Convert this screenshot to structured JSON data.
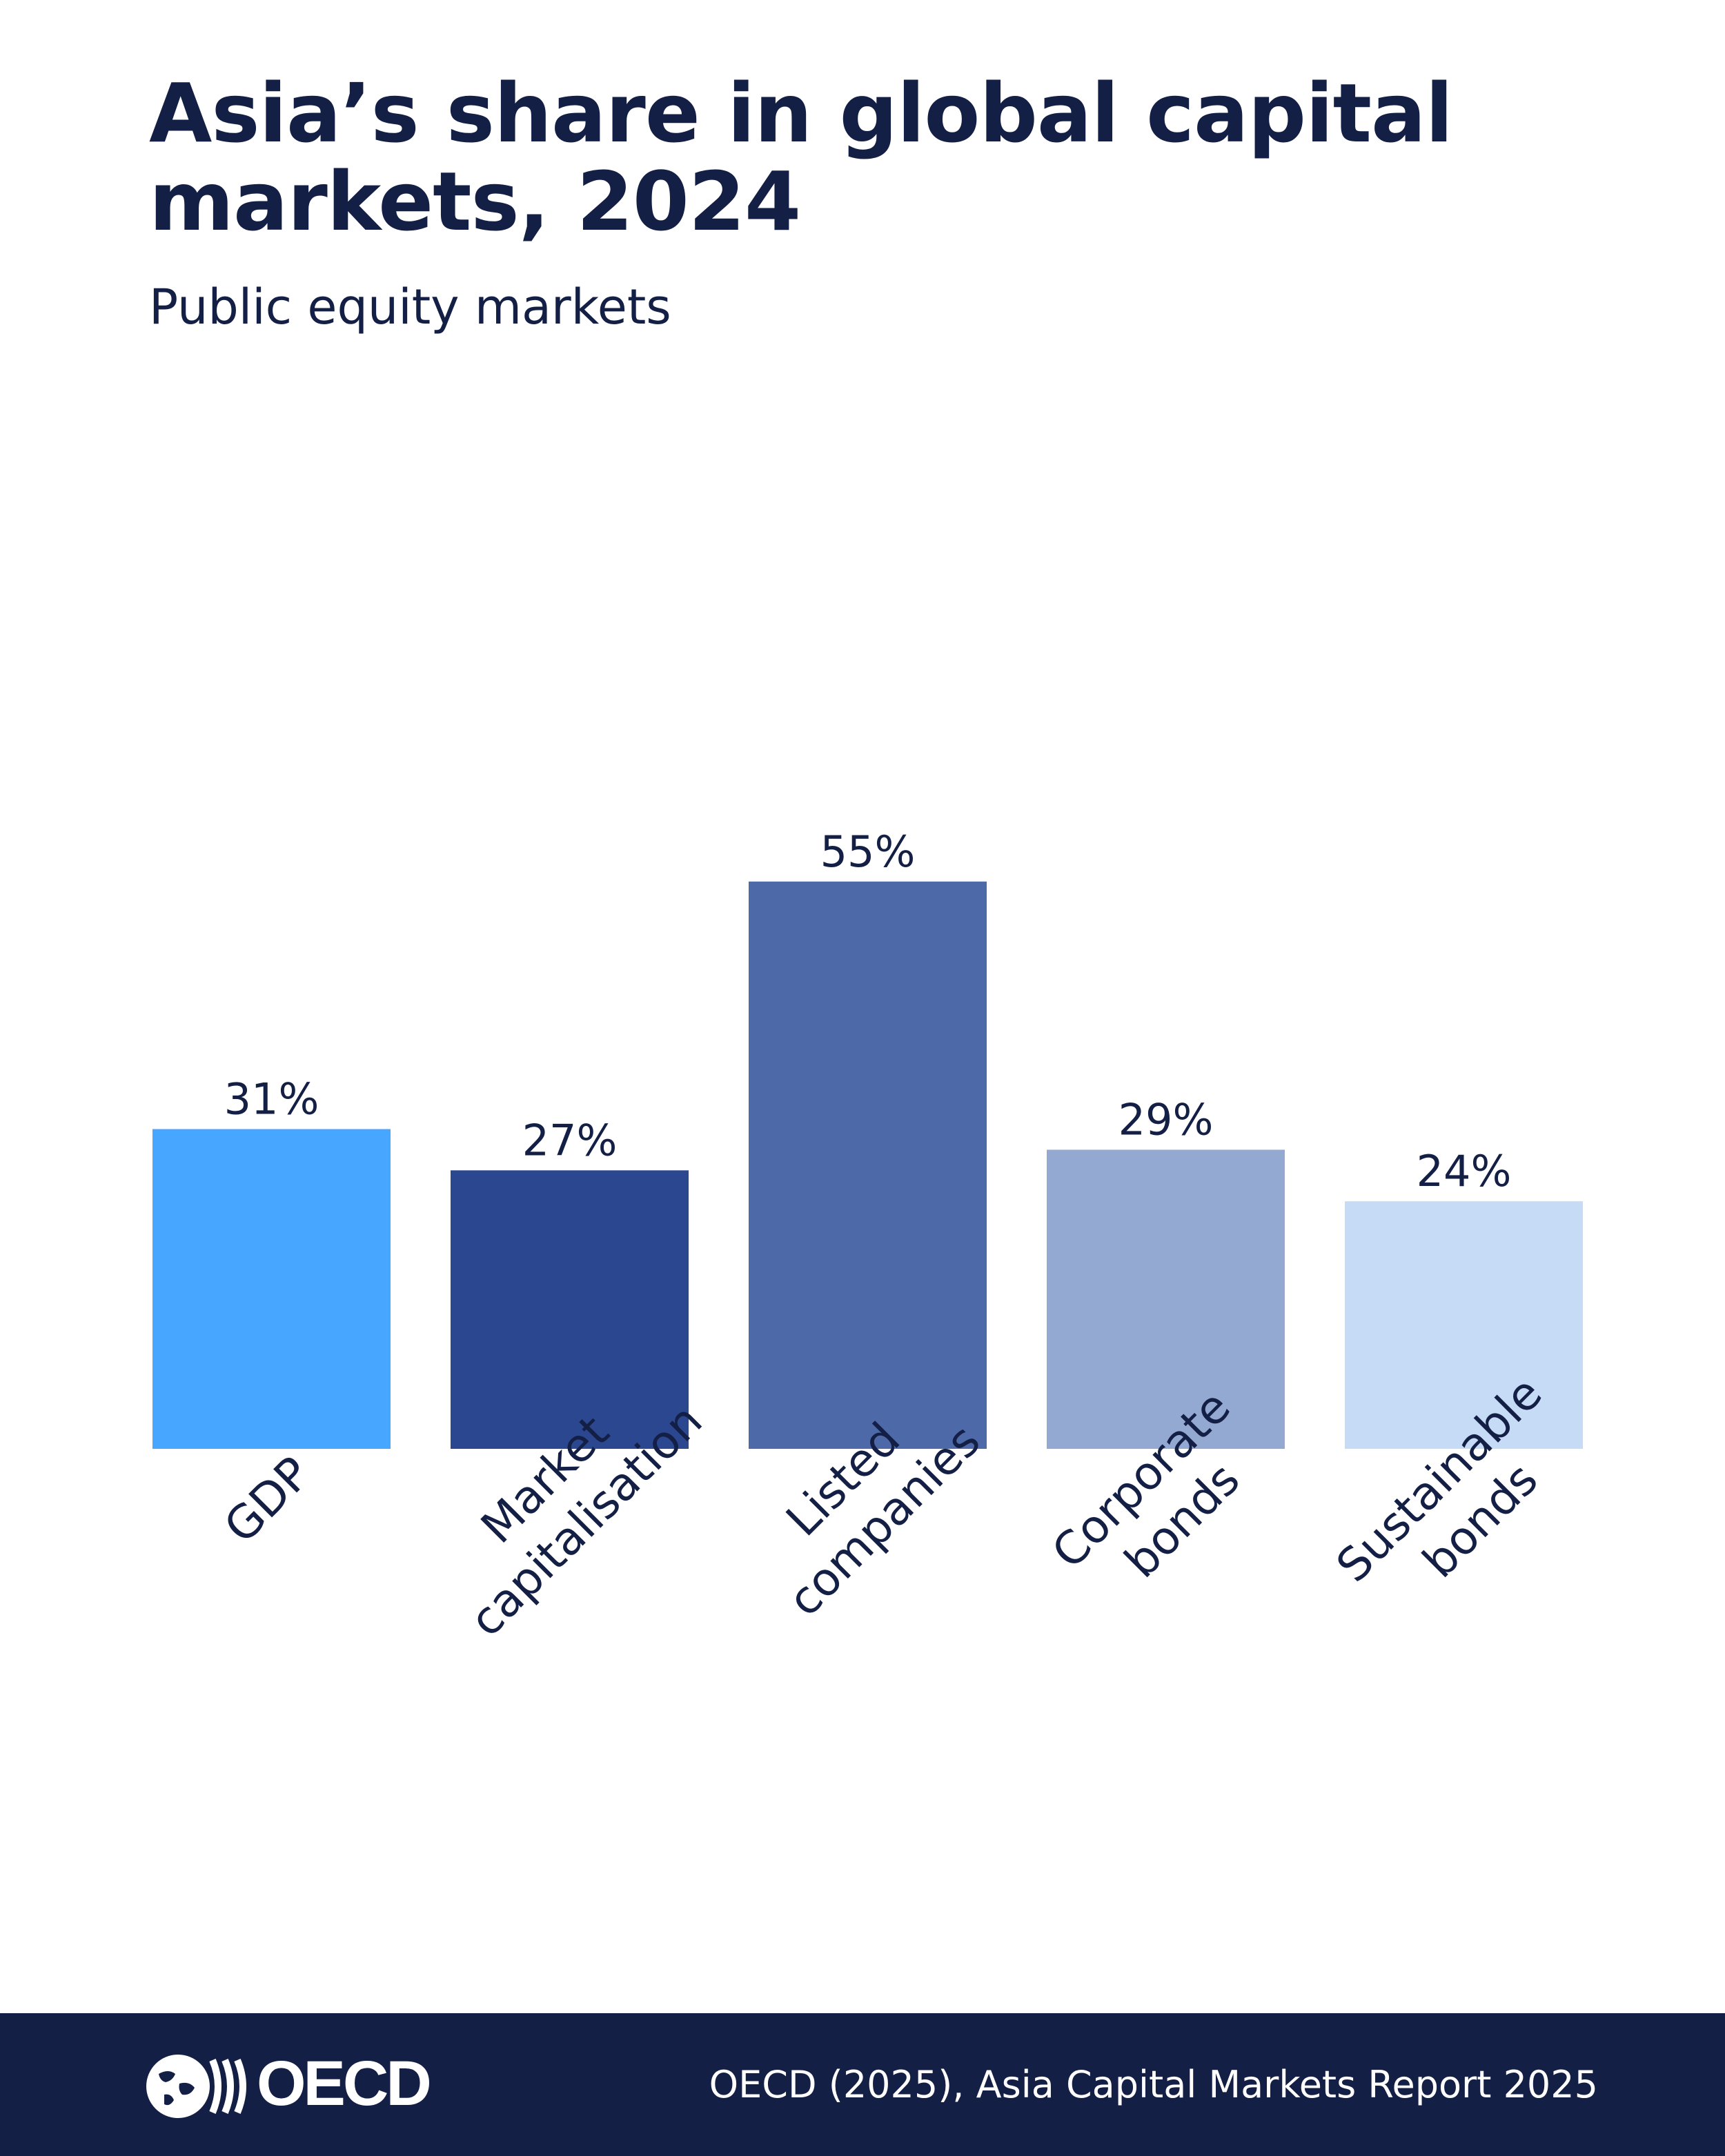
{
  "header": {
    "title": "Asia’s share in global capital markets, 2024",
    "subtitle": "Public equity markets"
  },
  "chart_data": {
    "type": "bar",
    "title": "Asia’s share in global capital markets, 2024",
    "subtitle": "Public equity markets",
    "categories": [
      [
        "GDP"
      ],
      [
        "Market",
        "capitalisation"
      ],
      [
        "Listed",
        "companies"
      ],
      [
        "Corporate",
        "bonds"
      ],
      [
        "Sustainable",
        "bonds"
      ]
    ],
    "values": [
      31,
      27,
      55,
      29,
      24
    ],
    "value_labels": [
      "31%",
      "27%",
      "55%",
      "29%",
      "24%"
    ],
    "colors": [
      "#47a6ff",
      "#2a478f",
      "#4d69a7",
      "#93a9d1",
      "#c6dbf5"
    ],
    "ylim": [
      0,
      100
    ],
    "grid": false,
    "legend": "none"
  },
  "footer": {
    "logo_text": "OECD",
    "source": "OECD (2025), Asia Capital Markets Report 2025",
    "background": "#141f45"
  }
}
